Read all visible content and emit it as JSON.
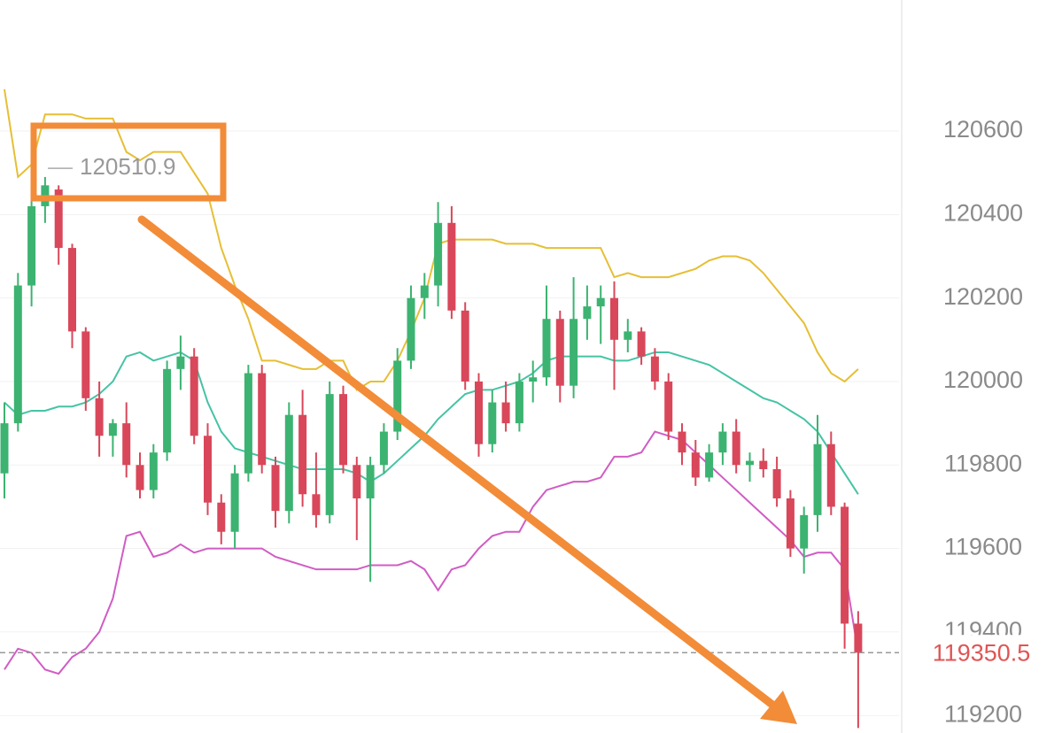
{
  "chart_data": {
    "type": "candlestick",
    "open": [
      119780,
      119900,
      120230,
      120420,
      120460,
      120320,
      120120,
      119960,
      119870,
      119900,
      119800,
      119740,
      119830,
      120030,
      120060,
      119870,
      119710,
      119640,
      119780,
      120020,
      119800,
      119690,
      119920,
      119730,
      119680,
      119970,
      119800,
      119720,
      119800,
      119880,
      120050,
      120200,
      120230,
      120380,
      120170,
      120000,
      119850,
      119950,
      119900,
      120000,
      120010,
      120150,
      119990,
      120150,
      120180,
      120200,
      120100,
      120120,
      120060,
      120000,
      119880,
      119830,
      119770,
      119830,
      119880,
      119800,
      119810,
      119790,
      119720,
      119600,
      119680,
      119850,
      119700,
      119420
    ],
    "high": [
      119950,
      120260,
      120450,
      120490,
      120470,
      120330,
      120130,
      120000,
      119910,
      119950,
      119830,
      119850,
      120050,
      120110,
      120080,
      119900,
      119730,
      119800,
      120040,
      120040,
      119820,
      119950,
      119980,
      119830,
      120000,
      119990,
      119820,
      119820,
      119900,
      120080,
      120230,
      120260,
      120430,
      120420,
      120190,
      120020,
      119980,
      120000,
      120020,
      120050,
      120230,
      120170,
      120250,
      120230,
      120230,
      120240,
      120150,
      120130,
      120080,
      120020,
      119900,
      119860,
      119850,
      119900,
      119910,
      119830,
      119840,
      119820,
      119740,
      119700,
      119920,
      119880,
      119710,
      119450
    ],
    "low": [
      119720,
      119880,
      120180,
      120380,
      120280,
      120080,
      119930,
      119820,
      119820,
      119770,
      119720,
      119720,
      119810,
      119980,
      119850,
      119680,
      119610,
      119600,
      119760,
      119780,
      119650,
      119660,
      119700,
      119650,
      119660,
      119780,
      119620,
      119520,
      119780,
      119860,
      120030,
      120150,
      120180,
      120150,
      119980,
      119820,
      119830,
      119880,
      119880,
      119950,
      119990,
      119950,
      119960,
      120100,
      120090,
      119980,
      120070,
      120040,
      119980,
      119860,
      119800,
      119750,
      119760,
      119800,
      119780,
      119760,
      119770,
      119700,
      119580,
      119540,
      119640,
      119680,
      119360,
      119170
    ],
    "close": [
      119900,
      120230,
      120420,
      120470,
      120320,
      120120,
      119960,
      119870,
      119900,
      119800,
      119740,
      119830,
      120030,
      120060,
      119870,
      119710,
      119640,
      119780,
      120020,
      119800,
      119690,
      119920,
      119730,
      119680,
      119970,
      119800,
      119720,
      119800,
      119880,
      120050,
      120200,
      120230,
      120380,
      120170,
      120000,
      119850,
      119950,
      119900,
      120000,
      120010,
      120150,
      119990,
      120150,
      120180,
      120200,
      120100,
      120120,
      120060,
      120000,
      119880,
      119830,
      119770,
      119830,
      119880,
      119800,
      119810,
      119790,
      119720,
      119600,
      119680,
      119850,
      119700,
      119420,
      119350.5
    ],
    "up_color": "#3cb371",
    "down_color": "#d9475a",
    "overlays": [
      {
        "color": "#e6bf35",
        "values": [
          120700,
          120490,
          120520,
          120640,
          120640,
          120640,
          120630,
          120630,
          120630,
          120550,
          120530,
          120550,
          120550,
          120550,
          120500,
          120450,
          120320,
          120230,
          120150,
          120050,
          120050,
          120040,
          120030,
          120030,
          120050,
          120050,
          119980,
          120000,
          120000,
          120050,
          120120,
          120200,
          120330,
          120340,
          120340,
          120340,
          120340,
          120330,
          120330,
          120330,
          120320,
          120320,
          120320,
          120320,
          120320,
          120250,
          120260,
          120250,
          120250,
          120250,
          120260,
          120270,
          120290,
          120300,
          120300,
          120290,
          120260,
          120220,
          120180,
          120140,
          120070,
          120020,
          120000,
          120030
        ]
      },
      {
        "color": "#45c3a5",
        "values": [
          119950,
          119920,
          119930,
          119930,
          119940,
          119940,
          119950,
          119970,
          120000,
          120060,
          120070,
          120050,
          120060,
          120070,
          120050,
          119950,
          119880,
          119840,
          119830,
          119820,
          119810,
          119800,
          119790,
          119790,
          119790,
          119790,
          119780,
          119760,
          119780,
          119810,
          119840,
          119870,
          119910,
          119940,
          119970,
          119980,
          119980,
          119990,
          120000,
          120020,
          120050,
          120060,
          120060,
          120060,
          120060,
          120050,
          120050,
          120060,
          120070,
          120070,
          120060,
          120050,
          120040,
          120020,
          120000,
          119980,
          119960,
          119950,
          119930,
          119910,
          119880,
          119830,
          119780,
          119730
        ]
      },
      {
        "color": "#d05cc4",
        "values": [
          119310,
          119360,
          119350,
          119310,
          119300,
          119340,
          119360,
          119400,
          119480,
          119630,
          119640,
          119580,
          119590,
          119610,
          119590,
          119600,
          119600,
          119600,
          119600,
          119600,
          119580,
          119570,
          119560,
          119550,
          119550,
          119550,
          119550,
          119560,
          119560,
          119560,
          119570,
          119550,
          119500,
          119550,
          119560,
          119600,
          119630,
          119640,
          119640,
          119700,
          119740,
          119750,
          119760,
          119760,
          119770,
          119820,
          119820,
          119830,
          119880,
          119870,
          119860,
          119830,
          119800,
          119770,
          119740,
          119710,
          119680,
          119650,
          119620,
          119580,
          119590,
          119590,
          119550,
          119350
        ]
      }
    ],
    "high_marker": 120510.9,
    "current_price": 119350.5,
    "ylim": [
      119158,
      120914
    ],
    "yticks": [
      119200,
      119400,
      119600,
      119800,
      120000,
      120200,
      120400,
      120600
    ],
    "grid": true
  }
}
